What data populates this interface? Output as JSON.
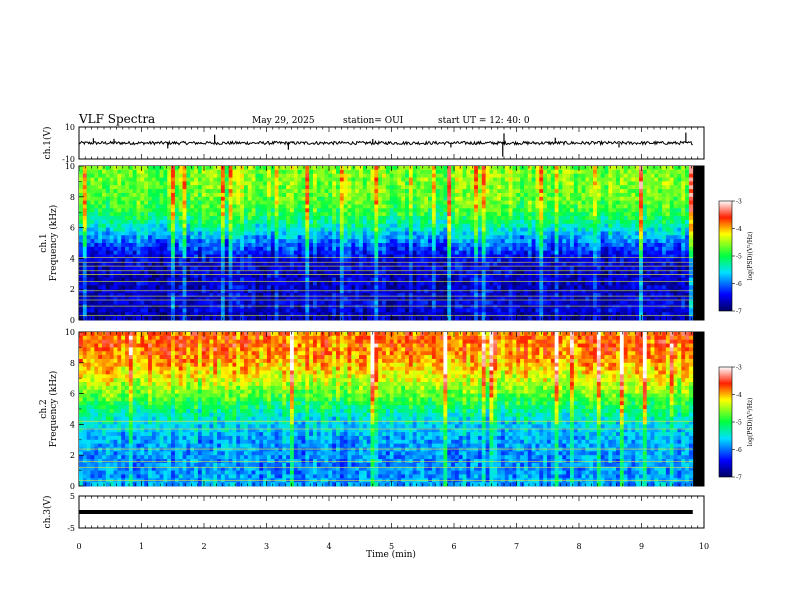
{
  "header": {
    "title": "VLF Spectra",
    "date": "May 29, 2025",
    "station": "station= OUI",
    "start": "start  UT  =   12: 40: 0"
  },
  "chart_data": [
    {
      "type": "line",
      "name": "ch1-waveform",
      "ylabel": "ch.1(V)",
      "ylim": [
        -10,
        10
      ],
      "yticks": [
        "10",
        "-10"
      ],
      "baseline": 0,
      "noise_amplitude": 1.0,
      "spikes": [
        {
          "x": 0.23,
          "y": 3.0
        },
        {
          "x": 0.56,
          "y": 2.6
        },
        {
          "x": 1.42,
          "y": -3.4
        },
        {
          "x": 2.17,
          "y": 5.2
        },
        {
          "x": 3.35,
          "y": -4.2
        },
        {
          "x": 4.7,
          "y": 2.5
        },
        {
          "x": 5.95,
          "y": -2.8
        },
        {
          "x": 6.78,
          "y": -8.5
        },
        {
          "x": 6.8,
          "y": 6.0
        },
        {
          "x": 7.62,
          "y": 3.3
        },
        {
          "x": 8.64,
          "y": -2.8
        },
        {
          "x": 9.71,
          "y": 6.5
        }
      ]
    },
    {
      "type": "heatmap",
      "name": "ch1-spectrogram",
      "ylabel": "ch.1",
      "ylabel2": "Frequency  (kHz)",
      "ylim": [
        0,
        10
      ],
      "yticks": [
        "0",
        "2",
        "4",
        "6",
        "8",
        "10"
      ],
      "data_end_min": 9.82,
      "colorbar": {
        "label": "log(PSD)(V²/Hz)",
        "range": [
          -7,
          -3
        ],
        "ticks": [
          "-3",
          "-4",
          "-5",
          "-6",
          "-7"
        ]
      },
      "mean_log_psd_by_freq": [
        {
          "f": 0.0,
          "v": -6.7
        },
        {
          "f": 1.0,
          "v": -6.5
        },
        {
          "f": 2.0,
          "v": -6.6
        },
        {
          "f": 3.0,
          "v": -6.6
        },
        {
          "f": 4.0,
          "v": -6.5
        },
        {
          "f": 5.0,
          "v": -6.0
        },
        {
          "f": 6.0,
          "v": -5.4
        },
        {
          "f": 7.0,
          "v": -4.9
        },
        {
          "f": 8.0,
          "v": -4.7
        },
        {
          "f": 9.0,
          "v": -4.6
        },
        {
          "f": 10.0,
          "v": -4.6
        }
      ],
      "tone_lines_khz": [
        0.3,
        0.9,
        1.3,
        1.55,
        1.9,
        2.5,
        2.95,
        3.2,
        3.5,
        3.75,
        4.05
      ]
    },
    {
      "type": "heatmap",
      "name": "ch2-spectrogram",
      "ylabel": "ch.2",
      "ylabel2": "Frequency  (kHz)",
      "ylim": [
        0,
        10
      ],
      "yticks": [
        "0",
        "2",
        "4",
        "6",
        "8",
        "10"
      ],
      "data_end_min": 9.82,
      "colorbar": {
        "label": "log(PSD)(V²/Hz)",
        "range": [
          -7,
          -3
        ],
        "ticks": [
          "-3",
          "-4",
          "-5",
          "-6",
          "-7"
        ]
      },
      "mean_log_psd_by_freq": [
        {
          "f": 0.0,
          "v": -5.8
        },
        {
          "f": 1.0,
          "v": -5.9
        },
        {
          "f": 2.0,
          "v": -5.9
        },
        {
          "f": 3.0,
          "v": -5.8
        },
        {
          "f": 4.0,
          "v": -5.6
        },
        {
          "f": 5.0,
          "v": -5.2
        },
        {
          "f": 6.0,
          "v": -4.7
        },
        {
          "f": 7.0,
          "v": -4.3
        },
        {
          "f": 8.0,
          "v": -4.0
        },
        {
          "f": 9.0,
          "v": -3.8
        },
        {
          "f": 10.0,
          "v": -3.8
        }
      ],
      "tone_lines_khz": [
        0.35,
        1.2,
        1.6,
        2.4,
        3.7,
        4.2
      ]
    },
    {
      "type": "line",
      "name": "ch3-waveform",
      "ylabel": "ch.3(V)",
      "ylim": [
        -5,
        5
      ],
      "yticks": [
        "5",
        "-5"
      ],
      "constant": 0
    }
  ],
  "time_axis": {
    "xlabel": "Time  (min)",
    "xlim": [
      0,
      10
    ],
    "ticks": [
      "0",
      "1",
      "2",
      "3",
      "4",
      "5",
      "6",
      "7",
      "8",
      "9",
      "10"
    ]
  }
}
